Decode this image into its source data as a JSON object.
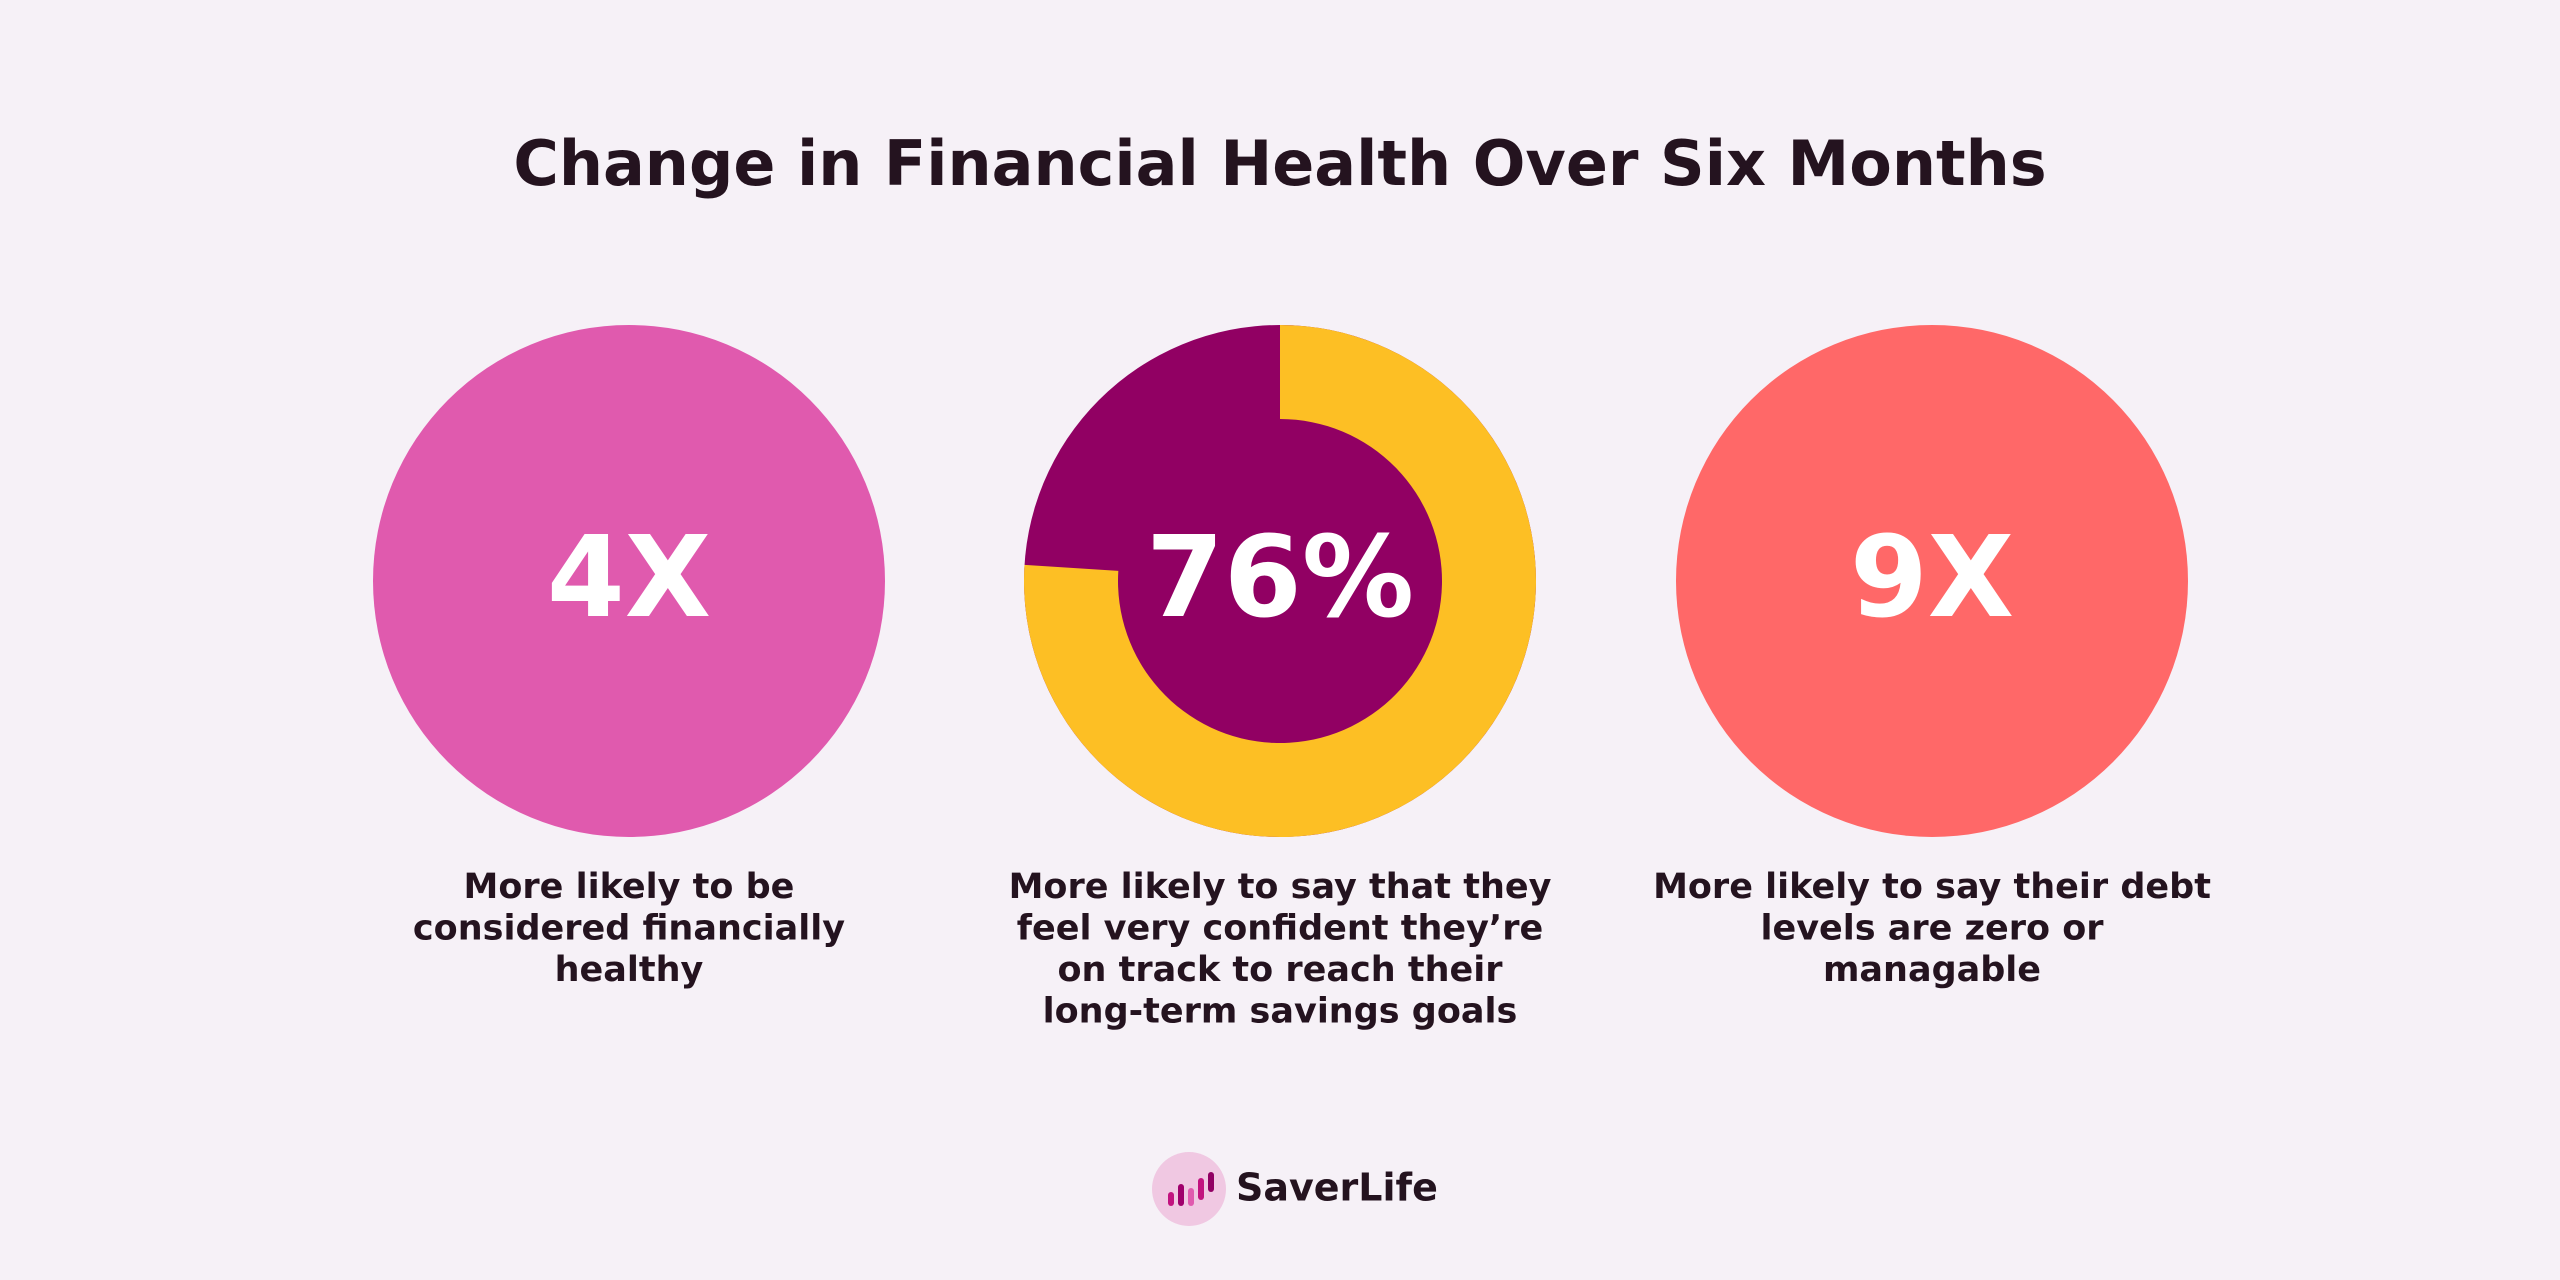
{
  "title": "Change in Financial Health Over Six Months",
  "stats": [
    {
      "label": "4X",
      "color": "#e05aae",
      "caption": [
        "More likely to be",
        "considered financially",
        "healthy"
      ]
    },
    {
      "value": 76,
      "value_label": "76%",
      "color": "#fdbf24",
      "background_color": "#910063",
      "caption": [
        "More likely to say that they",
        "feel very confident they’re",
        "on track to reach their",
        "long-term savings goals"
      ]
    },
    {
      "label": "9X",
      "color": "#ff6868",
      "caption": [
        "More likely to say their debt",
        "levels are zero or",
        "managable"
      ]
    }
  ],
  "logo": "SaverLife"
}
